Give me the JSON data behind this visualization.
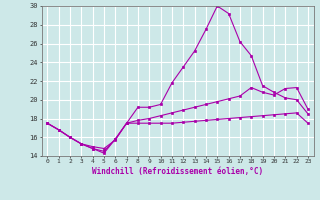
{
  "xlabel": "Windchill (Refroidissement éolien,°C)",
  "background_color": "#cde8e8",
  "grid_color": "#ffffff",
  "line_color": "#aa00aa",
  "xlim": [
    -0.5,
    23.5
  ],
  "ylim": [
    14,
    30
  ],
  "xticks": [
    0,
    1,
    2,
    3,
    4,
    5,
    6,
    7,
    8,
    9,
    10,
    11,
    12,
    13,
    14,
    15,
    16,
    17,
    18,
    19,
    20,
    21,
    22,
    23
  ],
  "yticks": [
    14,
    16,
    18,
    20,
    22,
    24,
    26,
    28,
    30
  ],
  "line1_x": [
    0,
    1,
    2,
    3,
    4,
    5,
    6,
    7,
    8,
    9,
    10,
    11,
    12,
    13,
    14,
    15,
    16,
    17,
    18,
    19,
    20,
    21,
    22,
    23
  ],
  "line1_y": [
    17.5,
    16.8,
    16.0,
    15.3,
    15.0,
    14.8,
    15.7,
    17.5,
    19.2,
    19.2,
    19.5,
    21.8,
    23.5,
    25.2,
    27.5,
    30.0,
    29.2,
    26.2,
    24.7,
    21.5,
    20.8,
    20.2,
    20.0,
    18.5
  ],
  "line2_x": [
    0,
    1,
    2,
    3,
    4,
    5,
    6,
    7,
    8,
    9,
    10,
    11,
    12,
    13,
    14,
    15,
    16,
    17,
    18,
    19,
    20,
    21,
    22,
    23
  ],
  "line2_y": [
    17.5,
    16.8,
    16.0,
    15.3,
    14.8,
    14.5,
    15.8,
    17.5,
    17.8,
    18.0,
    18.3,
    18.6,
    18.9,
    19.2,
    19.5,
    19.8,
    20.1,
    20.4,
    21.3,
    20.8,
    20.5,
    21.2,
    21.3,
    19.0
  ],
  "line3_x": [
    0,
    1,
    2,
    3,
    4,
    5,
    6,
    7,
    8,
    9,
    10,
    11,
    12,
    13,
    14,
    15,
    16,
    17,
    18,
    19,
    20,
    21,
    22,
    23
  ],
  "line3_y": [
    17.5,
    16.8,
    16.0,
    15.3,
    14.8,
    14.3,
    15.8,
    17.5,
    17.5,
    17.5,
    17.5,
    17.5,
    17.6,
    17.7,
    17.8,
    17.9,
    18.0,
    18.1,
    18.2,
    18.3,
    18.4,
    18.5,
    18.6,
    17.5
  ]
}
